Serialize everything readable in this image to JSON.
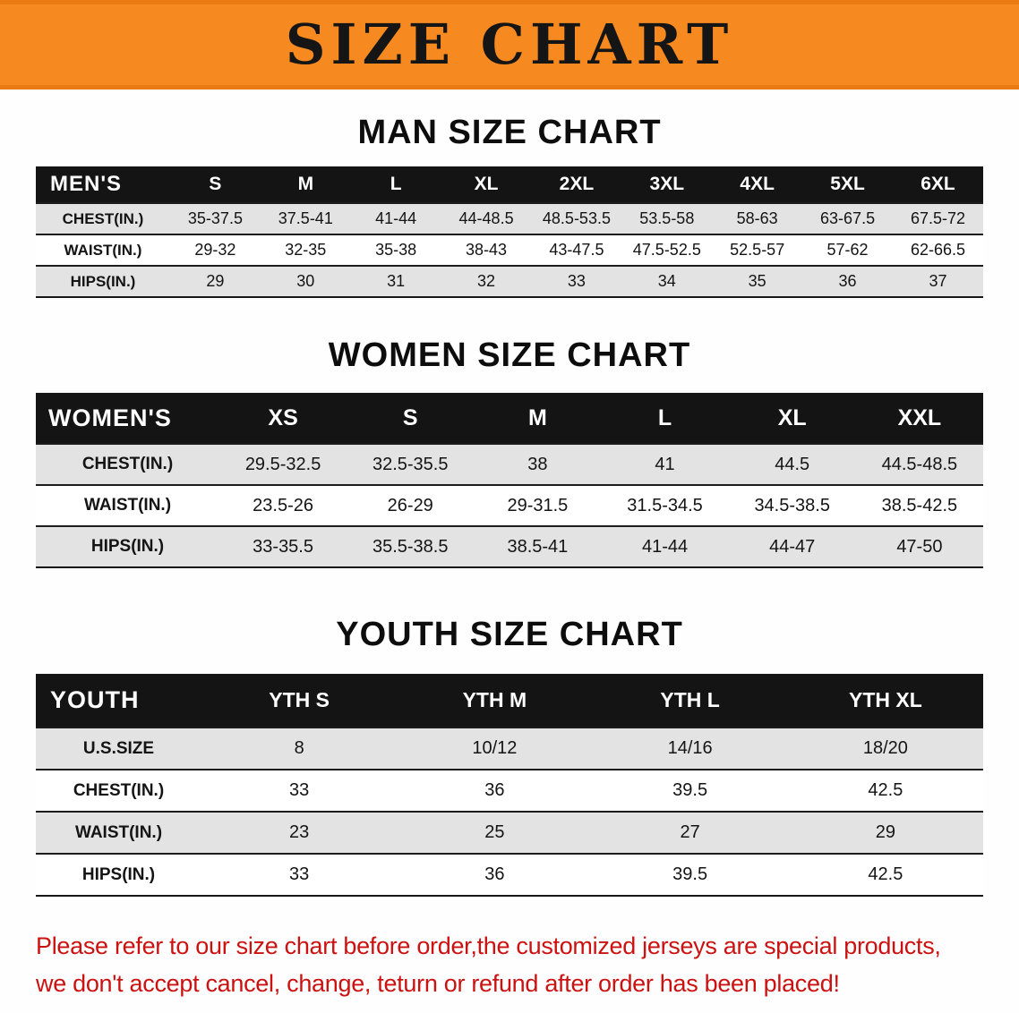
{
  "banner": {
    "title": "SIZE CHART"
  },
  "men": {
    "heading": "MAN SIZE CHART",
    "header": [
      "MEN'S",
      "S",
      "M",
      "L",
      "XL",
      "2XL",
      "3XL",
      "4XL",
      "5XL",
      "6XL"
    ],
    "rows": [
      [
        "CHEST(IN.)",
        "35-37.5",
        "37.5-41",
        "41-44",
        "44-48.5",
        "48.5-53.5",
        "53.5-58",
        "58-63",
        "63-67.5",
        "67.5-72"
      ],
      [
        "WAIST(IN.)",
        "29-32",
        "32-35",
        "35-38",
        "38-43",
        "43-47.5",
        "47.5-52.5",
        "52.5-57",
        "57-62",
        "62-66.5"
      ],
      [
        "HIPS(IN.)",
        "29",
        "30",
        "31",
        "32",
        "33",
        "34",
        "35",
        "36",
        "37"
      ]
    ]
  },
  "women": {
    "heading": "WOMEN SIZE CHART",
    "header": [
      "WOMEN'S",
      "XS",
      "S",
      "M",
      "L",
      "XL",
      "XXL"
    ],
    "rows": [
      [
        "CHEST(IN.)",
        "29.5-32.5",
        "32.5-35.5",
        "38",
        "41",
        "44.5",
        "44.5-48.5"
      ],
      [
        "WAIST(IN.)",
        "23.5-26",
        "26-29",
        "29-31.5",
        "31.5-34.5",
        "34.5-38.5",
        "38.5-42.5"
      ],
      [
        "HIPS(IN.)",
        "33-35.5",
        "35.5-38.5",
        "38.5-41",
        "41-44",
        "44-47",
        "47-50"
      ]
    ]
  },
  "youth": {
    "heading": "YOUTH SIZE CHART",
    "header": [
      "YOUTH",
      "YTH S",
      "YTH M",
      "YTH L",
      "YTH XL"
    ],
    "rows": [
      [
        "U.S.SIZE",
        "8",
        "10/12",
        "14/16",
        "18/20"
      ],
      [
        "CHEST(IN.)",
        "33",
        "36",
        "39.5",
        "42.5"
      ],
      [
        "WAIST(IN.)",
        "23",
        "25",
        "27",
        "29"
      ],
      [
        "HIPS(IN.)",
        "33",
        "36",
        "39.5",
        "42.5"
      ]
    ]
  },
  "footer": {
    "line1": "Please refer to our size chart before order,the customized jerseys are special products,",
    "line2": "we don't accept cancel, change, teturn or refund after order has been placed!"
  },
  "colors": {
    "banner_bg": "#f6891f",
    "banner_edge": "#ea7a12",
    "table_header_bg": "#141414",
    "row_alt_bg": "#e3e3e3",
    "disclaimer_red": "#cc1111"
  }
}
